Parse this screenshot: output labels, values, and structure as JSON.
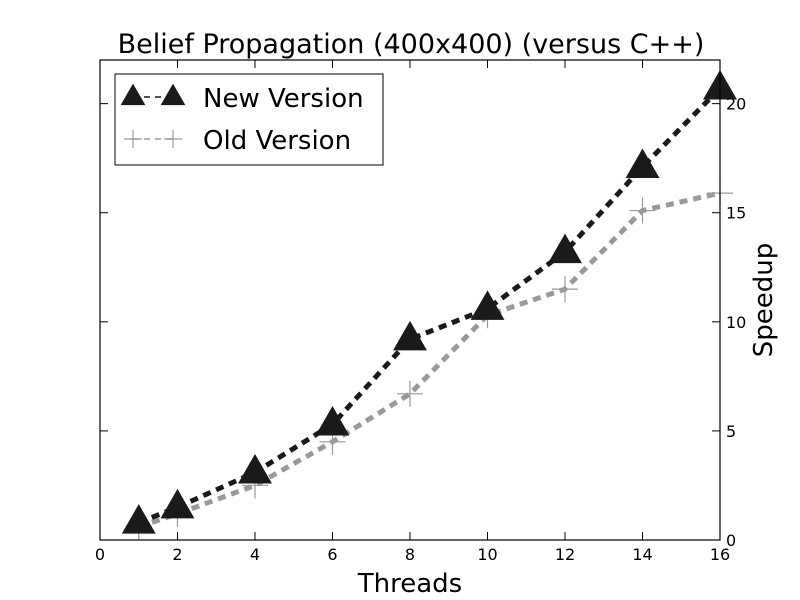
{
  "chart_data": {
    "type": "line",
    "title": "Belief Propagation (400x400) (versus C++)",
    "xlabel": "Threads",
    "ylabel": "Speedup",
    "xlim": [
      0,
      16
    ],
    "ylim": [
      0,
      22
    ],
    "xticks": [
      "0",
      "2",
      "4",
      "6",
      "8",
      "10",
      "12",
      "14",
      "16"
    ],
    "yticks": [
      "0",
      "5",
      "10",
      "15",
      "20"
    ],
    "y_axis_side": "right",
    "grid": false,
    "legend_position": "top-left",
    "series": [
      {
        "name": "New Version",
        "marker": "triangle",
        "line_style": "dashed",
        "color": "#1a1a1a",
        "x": [
          1,
          2,
          4,
          6,
          8,
          10,
          12,
          14,
          16
        ],
        "y": [
          0.8,
          1.5,
          3.1,
          5.3,
          9.2,
          10.6,
          13.2,
          17.1,
          20.7
        ]
      },
      {
        "name": "Old Version",
        "marker": "plus",
        "line_style": "dashed",
        "color": "#999999",
        "x": [
          1,
          2,
          4,
          6,
          8,
          10,
          12,
          14,
          16
        ],
        "y": [
          0.6,
          1.2,
          2.5,
          4.5,
          6.7,
          10.3,
          11.5,
          15.1,
          15.9
        ]
      }
    ]
  }
}
